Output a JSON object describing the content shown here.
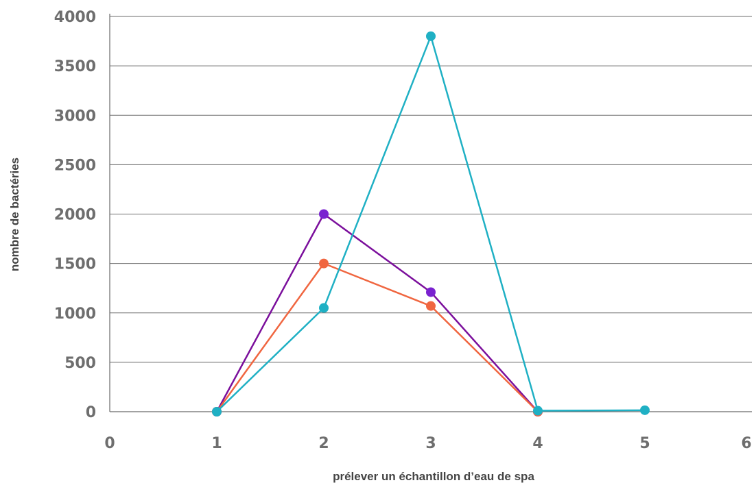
{
  "chart_data": {
    "type": "line",
    "xlabel": "prélever un échantillon d’eau de spa",
    "ylabel": "nombre de bactéries",
    "xlim": [
      0,
      6
    ],
    "ylim": [
      0,
      4000
    ],
    "x_ticks": [
      "0",
      "1",
      "2",
      "3",
      "4",
      "5",
      "6"
    ],
    "y_ticks": [
      "0",
      "500",
      "1000",
      "1500",
      "2000",
      "2500",
      "3000",
      "3500",
      "4000"
    ],
    "grid": "horizontal",
    "series": [
      {
        "color": "#7b0f9c",
        "marker_color": "#7a22d0",
        "points": [
          [
            1,
            0
          ],
          [
            2,
            2000
          ],
          [
            3,
            1210
          ],
          [
            4,
            0
          ]
        ]
      },
      {
        "color": "#f06640",
        "marker_color": "#f06640",
        "points": [
          [
            1,
            0
          ],
          [
            2,
            1500
          ],
          [
            3,
            1070
          ],
          [
            4,
            0
          ]
        ]
      },
      {
        "color": "#1fb0c4",
        "marker_color": "#1fb0c4",
        "points": [
          [
            1,
            0
          ],
          [
            2,
            1050
          ],
          [
            3,
            3800
          ],
          [
            4,
            10
          ],
          [
            5,
            15
          ]
        ]
      }
    ]
  }
}
